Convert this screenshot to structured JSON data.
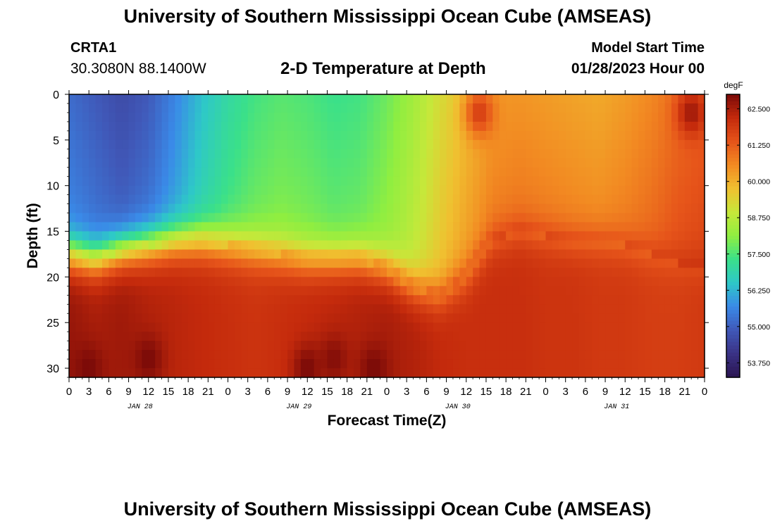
{
  "page": {
    "title": "University of Southern Mississippi Ocean Cube (AMSEAS)",
    "footer_title": "University of Southern Mississippi Ocean Cube (AMSEAS)",
    "station_name": "CRTA1",
    "station_coords": "30.3080N  88.1400W",
    "subtitle": "2-D Temperature at Depth",
    "model_start_label": "Model Start Time",
    "model_start_value": "01/28/2023 Hour 00"
  },
  "chart_data": {
    "type": "heatmap",
    "title": "2-D Temperature at Depth",
    "xlabel": "Forecast Time(Z)",
    "ylabel": "Depth (ft)",
    "x_hours_range": [
      0,
      96
    ],
    "x_tick_labels": [
      "0",
      "3",
      "6",
      "9",
      "12",
      "15",
      "18",
      "21",
      "0",
      "3",
      "6",
      "9",
      "12",
      "15",
      "18",
      "21",
      "0",
      "3",
      "6",
      "9",
      "12",
      "15",
      "18",
      "21",
      "0",
      "3",
      "6",
      "9",
      "12",
      "15",
      "18",
      "21",
      "0"
    ],
    "date_labels": [
      {
        "label": "JAN 28",
        "hour": 12
      },
      {
        "label": "JAN 29",
        "hour": 36
      },
      {
        "label": "JAN 30",
        "hour": 60
      },
      {
        "label": "JAN 31",
        "hour": 84
      }
    ],
    "y_range_ft": [
      0,
      31
    ],
    "y_tick_labels": [
      "0",
      "5",
      "10",
      "15",
      "20",
      "25",
      "30"
    ],
    "y_tick_values": [
      0,
      5,
      10,
      15,
      20,
      25,
      30
    ],
    "colorbar": {
      "unit": "degF",
      "min": 53.25,
      "max": 63.0,
      "tick_labels": [
        "62.500",
        "61.250",
        "60.000",
        "58.750",
        "57.500",
        "56.250",
        "55.000",
        "53.750"
      ],
      "tick_values": [
        62.5,
        61.25,
        60.0,
        58.75,
        57.5,
        56.25,
        55.0,
        53.75
      ],
      "colors": [
        "#2a1450",
        "#3a3285",
        "#4058b8",
        "#3a8ae8",
        "#2ec8c8",
        "#3ae08a",
        "#90ee40",
        "#c6e83a",
        "#f0c030",
        "#f28a22",
        "#e6541a",
        "#c42a0c",
        "#7a0a08"
      ]
    },
    "surface_layer_temp": [
      55.2,
      54.9,
      54.6,
      54.9,
      55.6,
      56.4,
      57.0,
      57.4,
      57.6,
      57.5,
      57.3,
      57.4,
      57.8,
      58.4,
      59.2,
      59.8,
      60.3,
      60.4,
      60.3,
      60.2,
      60.1,
      60.3,
      60.6,
      61.0,
      61.2
    ],
    "thermocline_depth_ft": [
      17.5,
      18.0,
      17.0,
      16.5,
      16.0,
      16.0,
      16.5,
      17.0,
      17.5,
      18.0,
      18.0,
      18.0,
      19.0,
      21.0,
      22.0,
      20.0,
      16.0,
      15.0,
      15.5,
      16.0,
      16.0,
      16.5,
      17.5,
      18.5,
      19.0
    ],
    "bottom_layer_temp": [
      62.7,
      62.5,
      62.6,
      62.4,
      62.3,
      62.2,
      62.1,
      62.0,
      62.1,
      62.2,
      62.3,
      62.4,
      62.5,
      62.4,
      62.2,
      62.1,
      62.1,
      62.1,
      62.0,
      62.0,
      61.9,
      61.9,
      61.8,
      61.8,
      61.9
    ],
    "warm_bottom_patches": [
      {
        "hour": 3,
        "depth": 30,
        "temp": 63.0
      },
      {
        "hour": 12,
        "depth": 29,
        "temp": 63.0
      },
      {
        "hour": 36,
        "depth": 30,
        "temp": 63.0
      },
      {
        "hour": 40,
        "depth": 29,
        "temp": 62.9
      },
      {
        "hour": 46,
        "depth": 30,
        "temp": 63.0
      },
      {
        "hour": 62,
        "depth": 2,
        "temp": 61.8
      },
      {
        "hour": 94,
        "depth": 2,
        "temp": 62.6
      }
    ]
  }
}
